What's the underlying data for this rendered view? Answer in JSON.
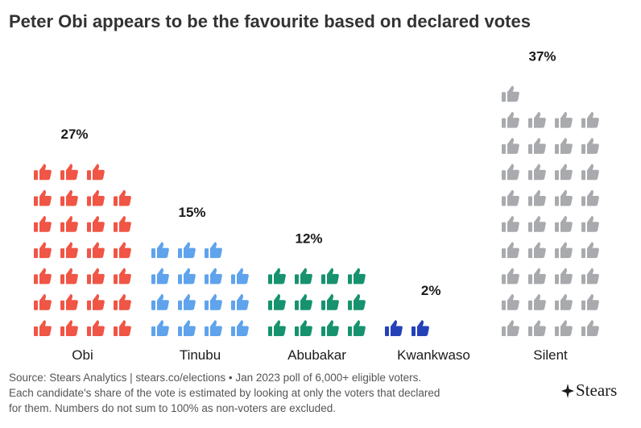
{
  "title": "Peter Obi appears to be the favourite based on declared votes",
  "chart_data": {
    "type": "pictogram",
    "unit": "each icon = 1 percentage point",
    "icon": "thumbs-up-icon",
    "categories": [
      "Obi",
      "Tinubu",
      "Abubakar",
      "Kwankwaso",
      "Silent"
    ],
    "values": [
      27,
      15,
      12,
      2,
      37
    ],
    "labels": [
      "27%",
      "15%",
      "12%",
      "2%",
      "37%"
    ],
    "colors": [
      "#f05545",
      "#5ea3ec",
      "#16936e",
      "#2441b8",
      "#a8aaad"
    ]
  },
  "footer": {
    "source_line1": "Source: Stears Analytics | stears.co/elections • Jan 2023 poll of 6,000+ eligible voters.",
    "source_line2": "Each candidate's share of the vote is estimated by looking at only the voters that declared",
    "source_line3": "for them. Numbers do not sum to 100% as non-voters are excluded.",
    "logo_text": "Stears"
  }
}
